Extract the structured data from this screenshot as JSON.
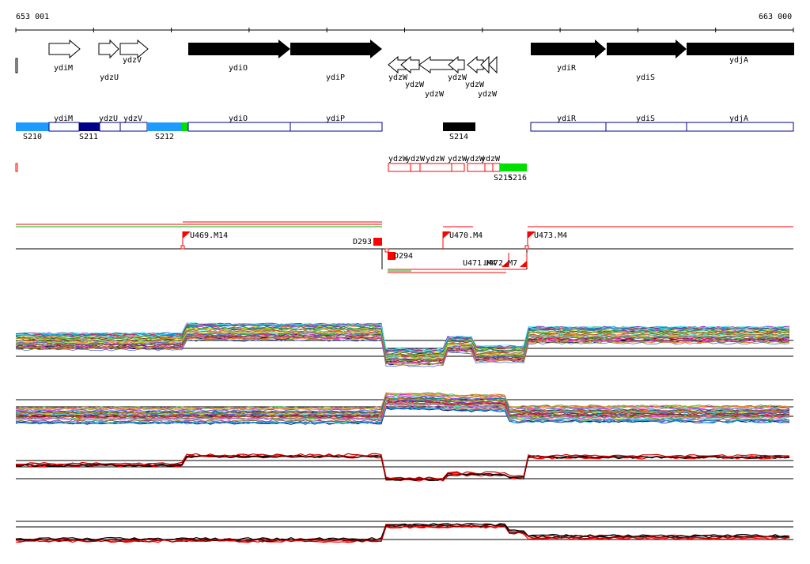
{
  "ruler": {
    "start_label": "653 001",
    "end_label": "663 000"
  },
  "genes": [
    {
      "label": "ydiM",
      "strand": "+",
      "fill": "white"
    },
    {
      "label": "ydzU",
      "strand": "+",
      "fill": "white"
    },
    {
      "label": "ydzV",
      "strand": "+",
      "fill": "white"
    },
    {
      "label": "ydiO",
      "strand": "+",
      "fill": "black"
    },
    {
      "label": "ydiP",
      "strand": "+",
      "fill": "black"
    },
    {
      "label": "ydzW",
      "strand": "-",
      "fill": "white"
    },
    {
      "label": "ydzW",
      "strand": "-",
      "fill": "white"
    },
    {
      "label": "ydzW",
      "strand": "-",
      "fill": "white"
    },
    {
      "label": "ydzW",
      "strand": "-",
      "fill": "white"
    },
    {
      "label": "ydzW",
      "strand": "-",
      "fill": "white"
    },
    {
      "label": "ydzW",
      "strand": "-",
      "fill": "white"
    },
    {
      "label": "ydiR",
      "strand": "+",
      "fill": "black"
    },
    {
      "label": "ydiS",
      "strand": "+",
      "fill": "black"
    },
    {
      "label": "ydjA",
      "strand": "+",
      "fill": "black"
    }
  ],
  "segments_plus": [
    {
      "label": "S210",
      "color": "#1e9bff"
    },
    {
      "label": "S211",
      "color": "#00008b"
    },
    {
      "label": "S212",
      "color": "#1e9bff"
    },
    {
      "label": "S214",
      "color": "#000000"
    },
    {
      "label": "S215",
      "color": "#ffffff"
    },
    {
      "label": "S216",
      "color": "#00e000"
    }
  ],
  "gene_boxes_plus": [
    "ydiM",
    "ydzU",
    "ydzV",
    "ydiO",
    "ydiP",
    "ydiR",
    "ydiS",
    "ydjA"
  ],
  "gene_boxes_minus": [
    "ydzW",
    "ydzW",
    "ydzW",
    "ydzW",
    "ydzW",
    "ydzW"
  ],
  "features": [
    {
      "label": "U469.M14",
      "type": "flag-up"
    },
    {
      "label": "D293",
      "type": "block"
    },
    {
      "label": "D294",
      "type": "block"
    },
    {
      "label": "U470.M4",
      "type": "flag-up"
    },
    {
      "label": "U471.M4",
      "type": "flag-down"
    },
    {
      "label": "U472.M7",
      "type": "flag-down"
    },
    {
      "label": "U473.M4",
      "type": "flag-up"
    }
  ],
  "colors": {
    "gene_box": "#00008b",
    "feature": "#ff0000",
    "track_line": "#000000"
  }
}
